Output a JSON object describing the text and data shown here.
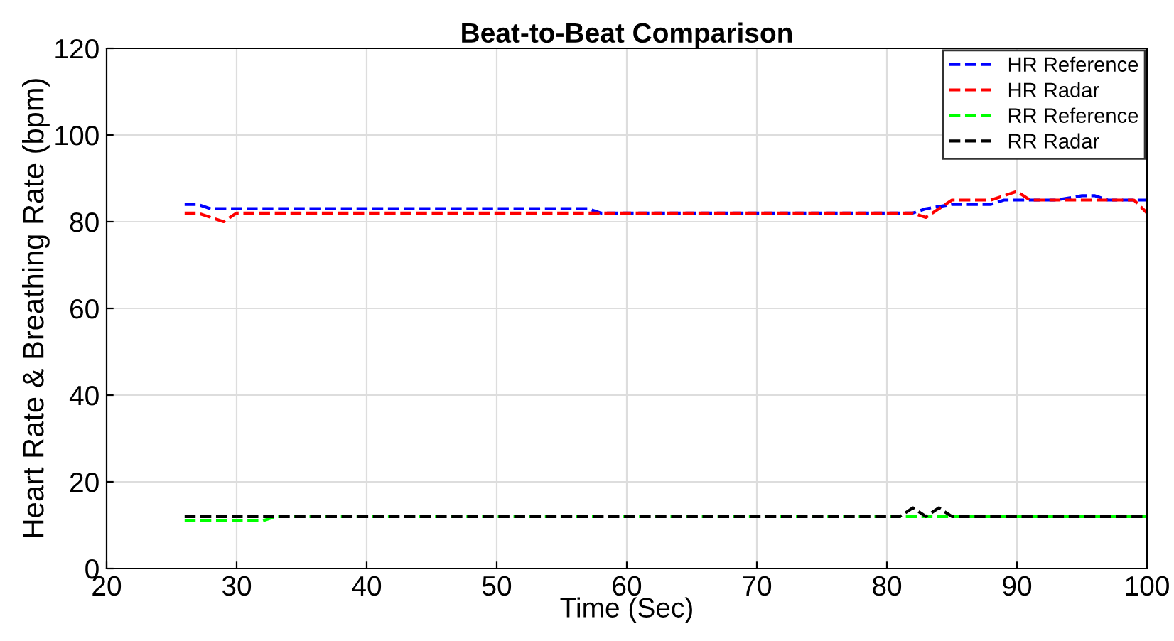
{
  "chart_data": {
    "type": "line",
    "title": "Beat-to-Beat Comparison",
    "xlabel": "Time (Sec)",
    "ylabel": "Heart Rate & Breathing Rate (bpm)",
    "xlim": [
      20,
      100
    ],
    "xticks": [
      20,
      30,
      40,
      50,
      60,
      70,
      80,
      90,
      100
    ],
    "ylim": [
      0,
      120
    ],
    "yticks": [
      0,
      20,
      40,
      60,
      80,
      100,
      120
    ],
    "grid": true,
    "legend": "top right",
    "line_style": "dashed",
    "marker": "none",
    "series": [
      {
        "name": "HR Reference",
        "color": "#0000ff",
        "x": [
          26,
          27,
          28,
          57,
          58,
          82,
          83,
          85,
          88,
          89,
          91,
          93,
          95,
          96,
          97,
          100
        ],
        "values": [
          84,
          84,
          83,
          83,
          82,
          82,
          83,
          84,
          84,
          85,
          85,
          85,
          86,
          86,
          85,
          85
        ]
      },
      {
        "name": "HR Radar",
        "color": "#ff0000",
        "x": [
          26,
          27,
          29,
          30,
          82,
          83,
          84,
          85,
          88,
          90,
          91,
          94,
          95,
          99,
          100
        ],
        "values": [
          82,
          82,
          80,
          82,
          82,
          81,
          83,
          85,
          85,
          87,
          85,
          85,
          85,
          85,
          82
        ]
      },
      {
        "name": "RR Reference",
        "color": "#00ff00",
        "x": [
          26,
          32,
          33,
          100
        ],
        "values": [
          11,
          11,
          12,
          12
        ]
      },
      {
        "name": "RR Radar",
        "color": "#000000",
        "x": [
          26,
          81,
          82,
          83,
          84,
          85,
          100
        ],
        "values": [
          12,
          12,
          14,
          12,
          14,
          12,
          12
        ]
      }
    ]
  }
}
